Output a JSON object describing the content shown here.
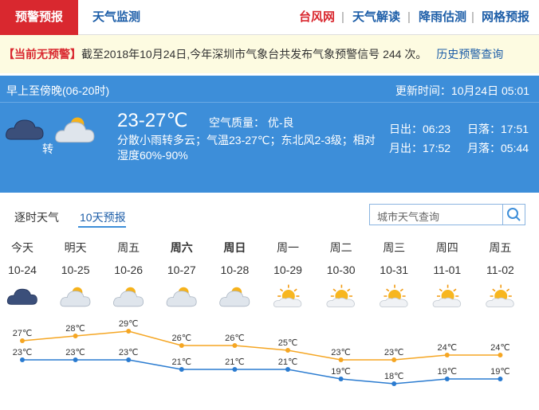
{
  "tabs": [
    "预警预报",
    "天气监测"
  ],
  "links": [
    "台风网",
    "天气解读",
    "降雨估测",
    "网格预报"
  ],
  "alert": {
    "badge": "【当前无预警】",
    "text": "截至2018年10月24日,今年深圳市气象台共发布气象预警信号 244 次。",
    "link": "历史预警查询"
  },
  "current": {
    "period": "早上至傍晚(06-20时)",
    "updated": "更新时间：10月24日 05:01",
    "temp": "23-27℃",
    "aqi": "空气质量： 优-良",
    "desc": "分散小雨转多云；气温23-27℃；东北风2-3级；相对湿度60%-90%",
    "turn": "转",
    "sunrise": "日出：06:23",
    "sunset": "日落：17:51",
    "moonrise": "月出：17:52",
    "moonset": "月落：05:44"
  },
  "forecast_tabs": [
    "逐时天气",
    "10天预报"
  ],
  "search_placeholder": "城市天气查询",
  "forecast": {
    "days": [
      "今天",
      "明天",
      "周五",
      "周六",
      "周日",
      "周一",
      "周二",
      "周三",
      "周四",
      "周五"
    ],
    "dates": [
      "10-24",
      "10-25",
      "10-26",
      "10-27",
      "10-28",
      "10-29",
      "10-30",
      "10-31",
      "11-01",
      "11-02"
    ],
    "highs": [
      27,
      28,
      29,
      26,
      26,
      25,
      23,
      23,
      24,
      24
    ],
    "high_labels": [
      "27℃",
      "28℃",
      "29℃",
      "26℃",
      "26℃",
      "25℃",
      "23℃",
      "23℃",
      "24℃",
      "24℃"
    ],
    "lows": [
      23,
      23,
      23,
      21,
      21,
      21,
      19,
      18,
      19,
      19
    ],
    "low_labels": [
      "23℃",
      "23℃",
      "23℃",
      "21℃",
      "21℃",
      "21℃",
      "19℃",
      "18℃",
      "19℃",
      "19℃"
    ],
    "high_color": "#f5a623",
    "low_color": "#2a7bd0"
  }
}
